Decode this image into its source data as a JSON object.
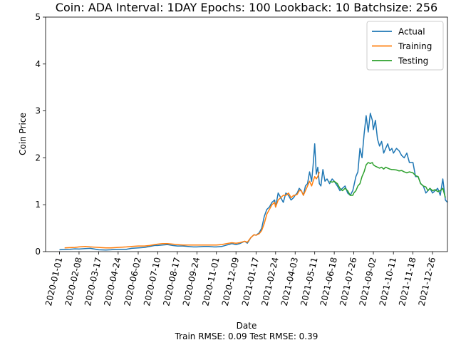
{
  "chart_data": {
    "type": "line",
    "title": "Coin: ADA Interval: 1DAY Epochs: 100 Lookback: 10 Batchsize: 256",
    "xlabel": "Date",
    "ylabel": "Coin Price",
    "footer": "Train RMSE: 0.09 Test RMSE: 0.39",
    "ylim": [
      0,
      5
    ],
    "xlim_days": [
      -27,
      754
    ],
    "yticks": [
      0,
      1,
      2,
      3,
      4,
      5
    ],
    "xticks": [
      {
        "label": "2020-01-01",
        "day": 0
      },
      {
        "label": "2020-02-08",
        "day": 38
      },
      {
        "label": "2020-03-17",
        "day": 76
      },
      {
        "label": "2020-04-24",
        "day": 114
      },
      {
        "label": "2020-06-02",
        "day": 153
      },
      {
        "label": "2020-07-10",
        "day": 191
      },
      {
        "label": "2020-08-17",
        "day": 229
      },
      {
        "label": "2020-09-24",
        "day": 267
      },
      {
        "label": "2020-11-01",
        "day": 305
      },
      {
        "label": "2020-12-09",
        "day": 343
      },
      {
        "label": "2021-01-17",
        "day": 382
      },
      {
        "label": "2021-02-24",
        "day": 420
      },
      {
        "label": "2021-04-03",
        "day": 458
      },
      {
        "label": "2021-05-11",
        "day": 496
      },
      {
        "label": "2021-06-18",
        "day": 534
      },
      {
        "label": "2021-07-26",
        "day": 572
      },
      {
        "label": "2021-09-02",
        "day": 610
      },
      {
        "label": "2021-10-11",
        "day": 649
      },
      {
        "label": "2021-11-18",
        "day": 687
      },
      {
        "label": "2021-12-26",
        "day": 725
      }
    ],
    "legend_position": "top-right",
    "series": [
      {
        "name": "Actual",
        "color": "#1f77b4",
        "x": [
          0,
          10,
          20,
          30,
          38,
          50,
          60,
          76,
          90,
          100,
          114,
          130,
          140,
          153,
          165,
          175,
          185,
          191,
          200,
          210,
          220,
          229,
          240,
          250,
          260,
          267,
          280,
          290,
          300,
          305,
          315,
          325,
          335,
          343,
          350,
          360,
          365,
          372,
          378,
          382,
          388,
          393,
          398,
          403,
          408,
          413,
          418,
          420,
          425,
          430,
          435,
          440,
          445,
          450,
          455,
          458,
          462,
          466,
          470,
          474,
          478,
          482,
          486,
          490,
          493,
          496,
          499,
          502,
          505,
          508,
          512,
          516,
          520,
          525,
          530,
          534,
          540,
          545,
          550,
          555,
          560,
          565,
          570,
          572,
          576,
          580,
          584,
          588,
          592,
          596,
          600,
          604,
          608,
          610,
          614,
          618,
          622,
          626,
          630,
          634,
          638,
          642,
          646,
          649,
          655,
          660,
          665,
          670,
          675,
          680,
          687,
          692,
          697,
          702,
          707,
          712,
          716,
          720,
          725,
          730,
          735,
          740,
          745,
          750,
          754
        ],
        "y": [
          0.04,
          0.045,
          0.05,
          0.06,
          0.055,
          0.065,
          0.07,
          0.04,
          0.035,
          0.04,
          0.05,
          0.05,
          0.07,
          0.08,
          0.09,
          0.11,
          0.13,
          0.13,
          0.14,
          0.15,
          0.13,
          0.12,
          0.12,
          0.11,
          0.1,
          0.1,
          0.11,
          0.11,
          0.1,
          0.1,
          0.11,
          0.14,
          0.17,
          0.15,
          0.17,
          0.22,
          0.18,
          0.3,
          0.36,
          0.35,
          0.4,
          0.5,
          0.75,
          0.9,
          0.95,
          1.05,
          1.1,
          0.95,
          1.25,
          1.15,
          1.05,
          1.25,
          1.2,
          1.1,
          1.15,
          1.2,
          1.25,
          1.35,
          1.3,
          1.2,
          1.4,
          1.45,
          1.7,
          1.5,
          1.85,
          2.3,
          1.65,
          1.8,
          1.45,
          1.4,
          1.75,
          1.5,
          1.55,
          1.45,
          1.55,
          1.5,
          1.4,
          1.3,
          1.35,
          1.4,
          1.25,
          1.2,
          1.3,
          1.4,
          1.6,
          1.7,
          2.2,
          2.0,
          2.5,
          2.9,
          2.55,
          2.95,
          2.8,
          2.6,
          2.8,
          2.4,
          2.25,
          2.35,
          2.1,
          2.2,
          2.3,
          2.15,
          2.2,
          2.1,
          2.2,
          2.15,
          2.05,
          2.0,
          2.1,
          1.9,
          1.9,
          1.6,
          1.6,
          1.45,
          1.4,
          1.25,
          1.3,
          1.35,
          1.25,
          1.3,
          1.35,
          1.2,
          1.55,
          1.1,
          1.05
        ]
      },
      {
        "name": "Training",
        "color": "#ff7f0e",
        "x": [
          10,
          20,
          30,
          38,
          50,
          60,
          76,
          90,
          100,
          114,
          130,
          140,
          153,
          165,
          175,
          185,
          191,
          200,
          210,
          220,
          229,
          240,
          250,
          260,
          267,
          280,
          290,
          300,
          305,
          315,
          325,
          335,
          343,
          350,
          360,
          365,
          372,
          378,
          382,
          388,
          393,
          398,
          403,
          408,
          413,
          418,
          420,
          425,
          430,
          435,
          440,
          445,
          450,
          455,
          458,
          462,
          466,
          470,
          474,
          478,
          482,
          486,
          490,
          493,
          496,
          499,
          502,
          505
        ],
        "y": [
          0.08,
          0.085,
          0.09,
          0.1,
          0.11,
          0.1,
          0.09,
          0.08,
          0.08,
          0.09,
          0.1,
          0.11,
          0.12,
          0.12,
          0.13,
          0.15,
          0.16,
          0.17,
          0.17,
          0.16,
          0.15,
          0.14,
          0.14,
          0.14,
          0.14,
          0.14,
          0.14,
          0.14,
          0.14,
          0.15,
          0.17,
          0.19,
          0.18,
          0.19,
          0.22,
          0.2,
          0.3,
          0.36,
          0.35,
          0.38,
          0.45,
          0.6,
          0.8,
          0.9,
          1.0,
          1.05,
          0.95,
          1.1,
          1.15,
          1.2,
          1.2,
          1.25,
          1.15,
          1.2,
          1.2,
          1.22,
          1.3,
          1.3,
          1.2,
          1.3,
          1.4,
          1.5,
          1.4,
          1.5,
          1.6,
          1.55,
          1.6,
          1.7
        ]
      },
      {
        "name": "Testing",
        "color": "#2ca02c",
        "x": [
          525,
          530,
          534,
          540,
          545,
          550,
          555,
          560,
          565,
          570,
          572,
          576,
          580,
          584,
          588,
          592,
          596,
          600,
          604,
          608,
          610,
          614,
          618,
          622,
          626,
          630,
          634,
          638,
          642,
          646,
          649,
          655,
          660,
          665,
          670,
          675,
          680,
          687,
          692,
          697,
          702,
          707,
          712,
          716,
          720,
          725,
          730,
          735,
          740,
          745,
          750
        ],
        "y": [
          1.5,
          1.48,
          1.5,
          1.45,
          1.35,
          1.3,
          1.35,
          1.3,
          1.2,
          1.2,
          1.25,
          1.3,
          1.4,
          1.45,
          1.6,
          1.7,
          1.85,
          1.9,
          1.88,
          1.9,
          1.85,
          1.82,
          1.8,
          1.78,
          1.8,
          1.76,
          1.8,
          1.78,
          1.76,
          1.75,
          1.75,
          1.74,
          1.72,
          1.73,
          1.7,
          1.68,
          1.7,
          1.68,
          1.62,
          1.6,
          1.45,
          1.4,
          1.38,
          1.3,
          1.35,
          1.3,
          1.32,
          1.28,
          1.3,
          1.35,
          1.15
        ]
      }
    ]
  }
}
